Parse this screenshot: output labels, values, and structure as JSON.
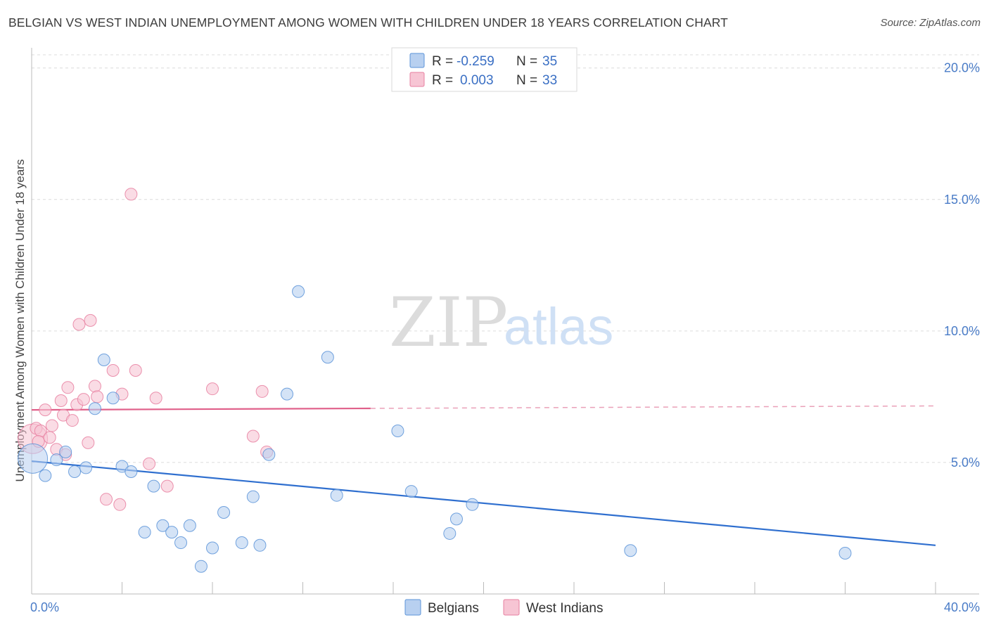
{
  "title": "BELGIAN VS WEST INDIAN UNEMPLOYMENT AMONG WOMEN WITH CHILDREN UNDER 18 YEARS CORRELATION CHART",
  "source": "Source: ZipAtlas.com",
  "watermark": {
    "zip": "ZIP",
    "atlas": "atlas"
  },
  "legend": {
    "r_label": "R =",
    "n_label": "N =",
    "rows": [
      {
        "series": "Belgians",
        "r": "-0.259",
        "n": "35"
      },
      {
        "series": "West Indians",
        "r": "0.003",
        "n": "33"
      }
    ]
  },
  "chart_data": {
    "type": "scatter",
    "title": "BELGIAN VS WEST INDIAN UNEMPLOYMENT AMONG WOMEN WITH CHILDREN UNDER 18 YEARS CORRELATION CHART",
    "xlabel": "",
    "ylabel": "Unemployment Among Women with Children Under 18 years",
    "xlim": [
      0,
      40
    ],
    "ylim": [
      0,
      20.5
    ],
    "x_tick_labels": [
      {
        "value": 0,
        "label": "0.0%"
      },
      {
        "value": 40,
        "label": "40.0%"
      }
    ],
    "y_ticks": [
      {
        "value": 5,
        "label": "5.0%"
      },
      {
        "value": 10,
        "label": "10.0%"
      },
      {
        "value": 15,
        "label": "15.0%"
      },
      {
        "value": 20,
        "label": "20.0%"
      }
    ],
    "grid": true,
    "legend_position": "top-center",
    "series": [
      {
        "name": "Belgians",
        "color": "#5b93d8",
        "fill": "#b8d0f0",
        "trend": {
          "x": [
            0,
            40
          ],
          "y": [
            5.05,
            1.85
          ],
          "style": "solid"
        },
        "points": [
          {
            "x": 0.05,
            "y": 5.15,
            "big": true
          },
          {
            "x": 0.6,
            "y": 4.5
          },
          {
            "x": 1.1,
            "y": 5.1
          },
          {
            "x": 1.5,
            "y": 5.4
          },
          {
            "x": 1.9,
            "y": 4.65
          },
          {
            "x": 2.4,
            "y": 4.8
          },
          {
            "x": 2.8,
            "y": 7.05
          },
          {
            "x": 3.2,
            "y": 8.9
          },
          {
            "x": 3.6,
            "y": 7.45
          },
          {
            "x": 4.0,
            "y": 4.85
          },
          {
            "x": 4.4,
            "y": 4.65
          },
          {
            "x": 5.0,
            "y": 2.35
          },
          {
            "x": 5.4,
            "y": 4.1
          },
          {
            "x": 5.8,
            "y": 2.6
          },
          {
            "x": 6.2,
            "y": 2.35
          },
          {
            "x": 6.6,
            "y": 1.95
          },
          {
            "x": 7.0,
            "y": 2.6
          },
          {
            "x": 7.5,
            "y": 1.05
          },
          {
            "x": 8.0,
            "y": 1.75
          },
          {
            "x": 8.5,
            "y": 3.1
          },
          {
            "x": 9.3,
            "y": 1.95
          },
          {
            "x": 9.8,
            "y": 3.7
          },
          {
            "x": 10.1,
            "y": 1.85
          },
          {
            "x": 10.5,
            "y": 5.3
          },
          {
            "x": 11.3,
            "y": 7.6
          },
          {
            "x": 11.8,
            "y": 11.5
          },
          {
            "x": 13.1,
            "y": 9.0
          },
          {
            "x": 13.5,
            "y": 3.75
          },
          {
            "x": 16.2,
            "y": 6.2
          },
          {
            "x": 16.8,
            "y": 3.9
          },
          {
            "x": 18.5,
            "y": 2.3
          },
          {
            "x": 18.8,
            "y": 2.85
          },
          {
            "x": 19.5,
            "y": 3.4
          },
          {
            "x": 26.5,
            "y": 1.65
          },
          {
            "x": 36.0,
            "y": 1.55
          }
        ]
      },
      {
        "name": "West Indians",
        "color": "#e77fa0",
        "fill": "#f7c5d4",
        "trend": {
          "x": [
            0,
            40
          ],
          "y": [
            7.0,
            7.15
          ],
          "solid_until": 15.0,
          "style": "solid-then-dashed"
        },
        "points": [
          {
            "x": 0.05,
            "y": 5.9,
            "big": true
          },
          {
            "x": 0.2,
            "y": 6.3
          },
          {
            "x": 0.4,
            "y": 6.2
          },
          {
            "x": 0.6,
            "y": 7.0
          },
          {
            "x": 0.9,
            "y": 6.4
          },
          {
            "x": 1.1,
            "y": 5.5
          },
          {
            "x": 1.3,
            "y": 7.35
          },
          {
            "x": 1.4,
            "y": 6.8
          },
          {
            "x": 1.6,
            "y": 7.85
          },
          {
            "x": 1.8,
            "y": 6.6
          },
          {
            "x": 2.0,
            "y": 7.2
          },
          {
            "x": 2.1,
            "y": 10.25
          },
          {
            "x": 2.3,
            "y": 7.4
          },
          {
            "x": 2.5,
            "y": 5.75
          },
          {
            "x": 2.6,
            "y": 10.4
          },
          {
            "x": 2.8,
            "y": 7.9
          },
          {
            "x": 2.9,
            "y": 7.5
          },
          {
            "x": 3.3,
            "y": 3.6
          },
          {
            "x": 3.6,
            "y": 8.5
          },
          {
            "x": 3.9,
            "y": 3.4
          },
          {
            "x": 4.0,
            "y": 7.6
          },
          {
            "x": 4.4,
            "y": 15.2
          },
          {
            "x": 4.6,
            "y": 8.5
          },
          {
            "x": 5.2,
            "y": 4.95
          },
          {
            "x": 5.5,
            "y": 7.45
          },
          {
            "x": 6.0,
            "y": 4.1
          },
          {
            "x": 8.0,
            "y": 7.8
          },
          {
            "x": 9.8,
            "y": 6.0
          },
          {
            "x": 10.2,
            "y": 7.7
          },
          {
            "x": 10.4,
            "y": 5.4
          },
          {
            "x": 0.3,
            "y": 5.8
          },
          {
            "x": 0.8,
            "y": 5.95
          },
          {
            "x": 1.5,
            "y": 5.3
          }
        ]
      }
    ]
  }
}
